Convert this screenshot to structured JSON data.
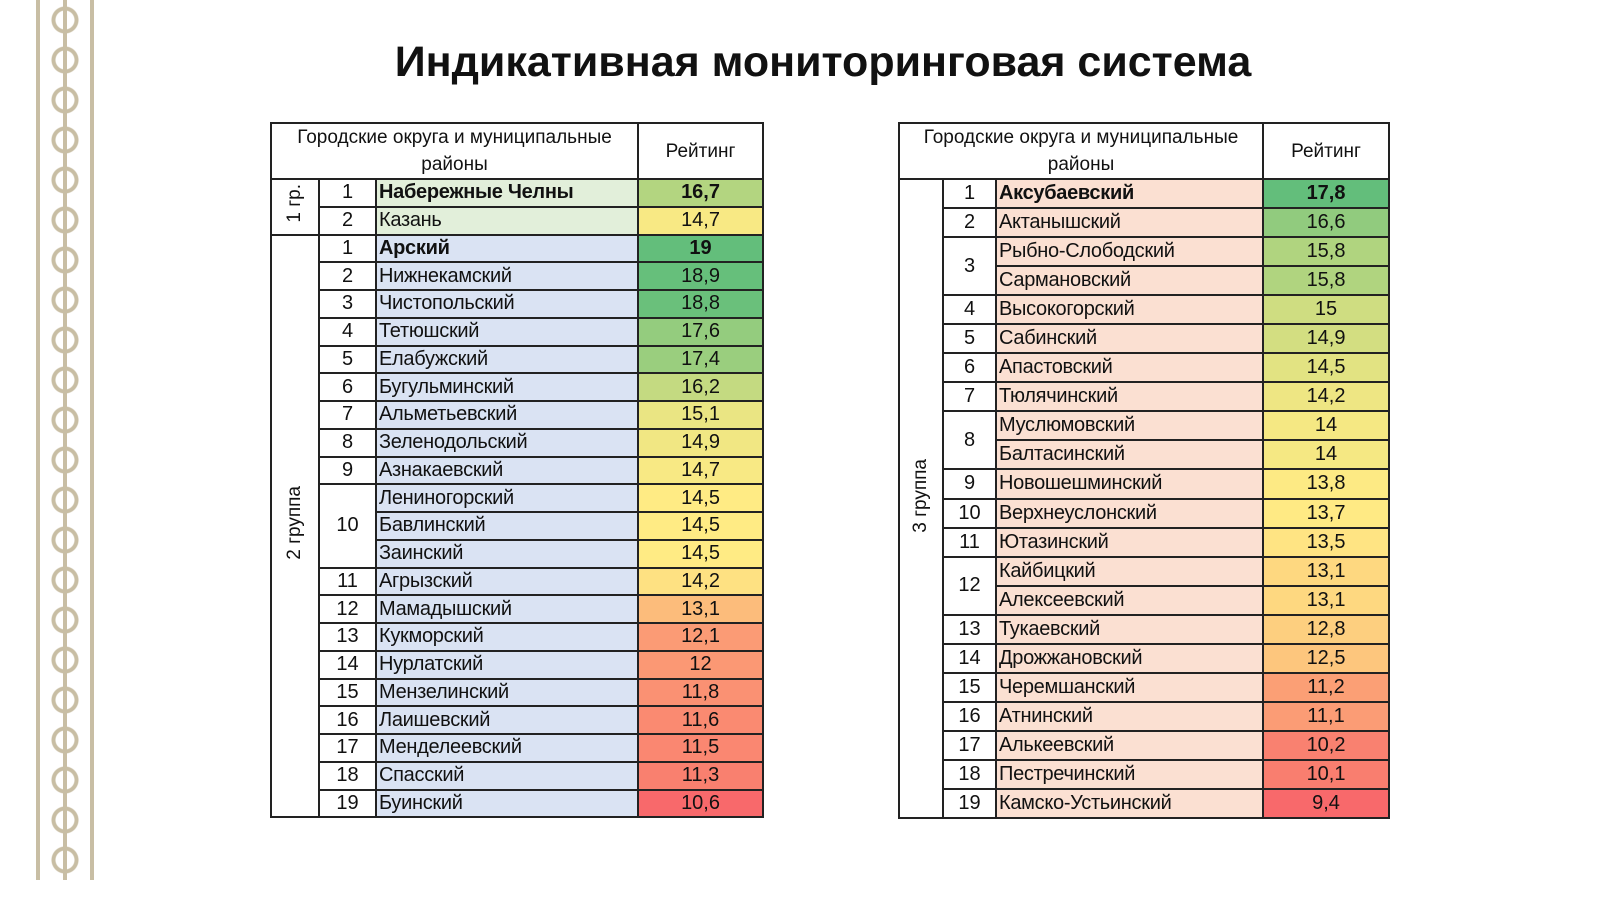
{
  "title": "Индикативная мониторинговая система",
  "scale": [
    "#f8696b",
    "#ffeb84",
    "#63be7b"
  ],
  "tables": [
    {
      "header": [
        "Городские округа и муниципальные районы",
        "Рейтинг"
      ],
      "groups": [
        {
          "label": "1 гр.",
          "fill": "#e2efda",
          "ranks": [
            {
              "rank": 1,
              "rows": [
                {
                  "name": "Набережные Челны",
                  "rating": "16,7",
                  "bold": true
                }
              ]
            },
            {
              "rank": 2,
              "rows": [
                {
                  "name": "Казань",
                  "rating": "14,7"
                }
              ]
            }
          ]
        },
        {
          "label": "2 группа",
          "fill": "#dae3f3",
          "ranks": [
            {
              "rank": 1,
              "rows": [
                {
                  "name": "Арский",
                  "rating": "19",
                  "bold": true
                }
              ]
            },
            {
              "rank": 2,
              "rows": [
                {
                  "name": "Нижнекамский",
                  "rating": "18,9"
                }
              ]
            },
            {
              "rank": 3,
              "rows": [
                {
                  "name": "Чистопольский",
                  "rating": "18,8"
                }
              ]
            },
            {
              "rank": 4,
              "rows": [
                {
                  "name": "Тетюшский",
                  "rating": "17,6"
                }
              ]
            },
            {
              "rank": 5,
              "rows": [
                {
                  "name": "Елабужский",
                  "rating": "17,4"
                }
              ]
            },
            {
              "rank": 6,
              "rows": [
                {
                  "name": "Бугульминский",
                  "rating": "16,2"
                }
              ]
            },
            {
              "rank": 7,
              "rows": [
                {
                  "name": "Альметьевский",
                  "rating": "15,1"
                }
              ]
            },
            {
              "rank": 8,
              "rows": [
                {
                  "name": "Зеленодольский",
                  "rating": "14,9"
                }
              ]
            },
            {
              "rank": 9,
              "rows": [
                {
                  "name": "Азнакаевский",
                  "rating": "14,7"
                }
              ]
            },
            {
              "rank": 10,
              "rows": [
                {
                  "name": "Лениногорский",
                  "rating": "14,5"
                },
                {
                  "name": "Бавлинский",
                  "rating": "14,5"
                },
                {
                  "name": "Заинский",
                  "rating": "14,5"
                }
              ]
            },
            {
              "rank": 11,
              "rows": [
                {
                  "name": "Агрызский",
                  "rating": "14,2"
                }
              ]
            },
            {
              "rank": 12,
              "rows": [
                {
                  "name": "Мамадышский",
                  "rating": "13,1"
                }
              ]
            },
            {
              "rank": 13,
              "rows": [
                {
                  "name": "Кукморский",
                  "rating": "12,1"
                }
              ]
            },
            {
              "rank": 14,
              "rows": [
                {
                  "name": "Нурлатский",
                  "rating": "12"
                }
              ]
            },
            {
              "rank": 15,
              "rows": [
                {
                  "name": "Мензелинский",
                  "rating": "11,8"
                }
              ]
            },
            {
              "rank": 16,
              "rows": [
                {
                  "name": "Лаишевский",
                  "rating": "11,6"
                }
              ]
            },
            {
              "rank": 17,
              "rows": [
                {
                  "name": "Менделеевский",
                  "rating": "11,5"
                }
              ]
            },
            {
              "rank": 18,
              "rows": [
                {
                  "name": "Спасский",
                  "rating": "11,3"
                }
              ]
            },
            {
              "rank": 19,
              "rows": [
                {
                  "name": "Буинский",
                  "rating": "10,6"
                }
              ]
            }
          ]
        }
      ]
    },
    {
      "header": [
        "Городские округа и муниципальные районы",
        "Рейтинг"
      ],
      "groups": [
        {
          "label": "3 группа",
          "fill": "#fbe0d2",
          "ranks": [
            {
              "rank": 1,
              "rows": [
                {
                  "name": "Аксубаевский",
                  "rating": "17,8",
                  "bold": true
                }
              ]
            },
            {
              "rank": 2,
              "rows": [
                {
                  "name": "Актанышский",
                  "rating": "16,6"
                }
              ]
            },
            {
              "rank": 3,
              "rows": [
                {
                  "name": "Рыбно-Слободский",
                  "rating": "15,8"
                },
                {
                  "name": "Сармановский",
                  "rating": "15,8"
                }
              ]
            },
            {
              "rank": 4,
              "rows": [
                {
                  "name": "Высокогорский",
                  "rating": "15"
                }
              ]
            },
            {
              "rank": 5,
              "rows": [
                {
                  "name": "Сабинский",
                  "rating": "14,9"
                }
              ]
            },
            {
              "rank": 6,
              "rows": [
                {
                  "name": "Апастовский",
                  "rating": "14,5"
                }
              ]
            },
            {
              "rank": 7,
              "rows": [
                {
                  "name": "Тюлячинский",
                  "rating": "14,2"
                }
              ]
            },
            {
              "rank": 8,
              "rows": [
                {
                  "name": "Муслюмовский",
                  "rating": "14"
                },
                {
                  "name": "Балтасинский",
                  "rating": "14"
                }
              ]
            },
            {
              "rank": 9,
              "rows": [
                {
                  "name": "Новошешминский",
                  "rating": "13,8"
                }
              ]
            },
            {
              "rank": 10,
              "rows": [
                {
                  "name": "Верхнеуслонский",
                  "rating": "13,7"
                }
              ]
            },
            {
              "rank": 11,
              "rows": [
                {
                  "name": "Ютазинский",
                  "rating": "13,5"
                }
              ]
            },
            {
              "rank": 12,
              "rows": [
                {
                  "name": "Кайбицкий",
                  "rating": "13,1"
                },
                {
                  "name": "Алексеевский",
                  "rating": "13,1"
                }
              ]
            },
            {
              "rank": 13,
              "rows": [
                {
                  "name": "Тукаевский",
                  "rating": "12,8"
                }
              ]
            },
            {
              "rank": 14,
              "rows": [
                {
                  "name": "Дрожжановский",
                  "rating": "12,5"
                }
              ]
            },
            {
              "rank": 15,
              "rows": [
                {
                  "name": "Черемшанский",
                  "rating": "11,2"
                }
              ]
            },
            {
              "rank": 16,
              "rows": [
                {
                  "name": "Атнинский",
                  "rating": "11,1"
                }
              ]
            },
            {
              "rank": 17,
              "rows": [
                {
                  "name": "Алькеевский",
                  "rating": "10,2"
                }
              ]
            },
            {
              "rank": 18,
              "rows": [
                {
                  "name": "Пестречинский",
                  "rating": "10,1"
                }
              ]
            },
            {
              "rank": 19,
              "rows": [
                {
                  "name": "Камско-Устьинский",
                  "rating": "9,4"
                }
              ]
            }
          ]
        }
      ]
    }
  ]
}
